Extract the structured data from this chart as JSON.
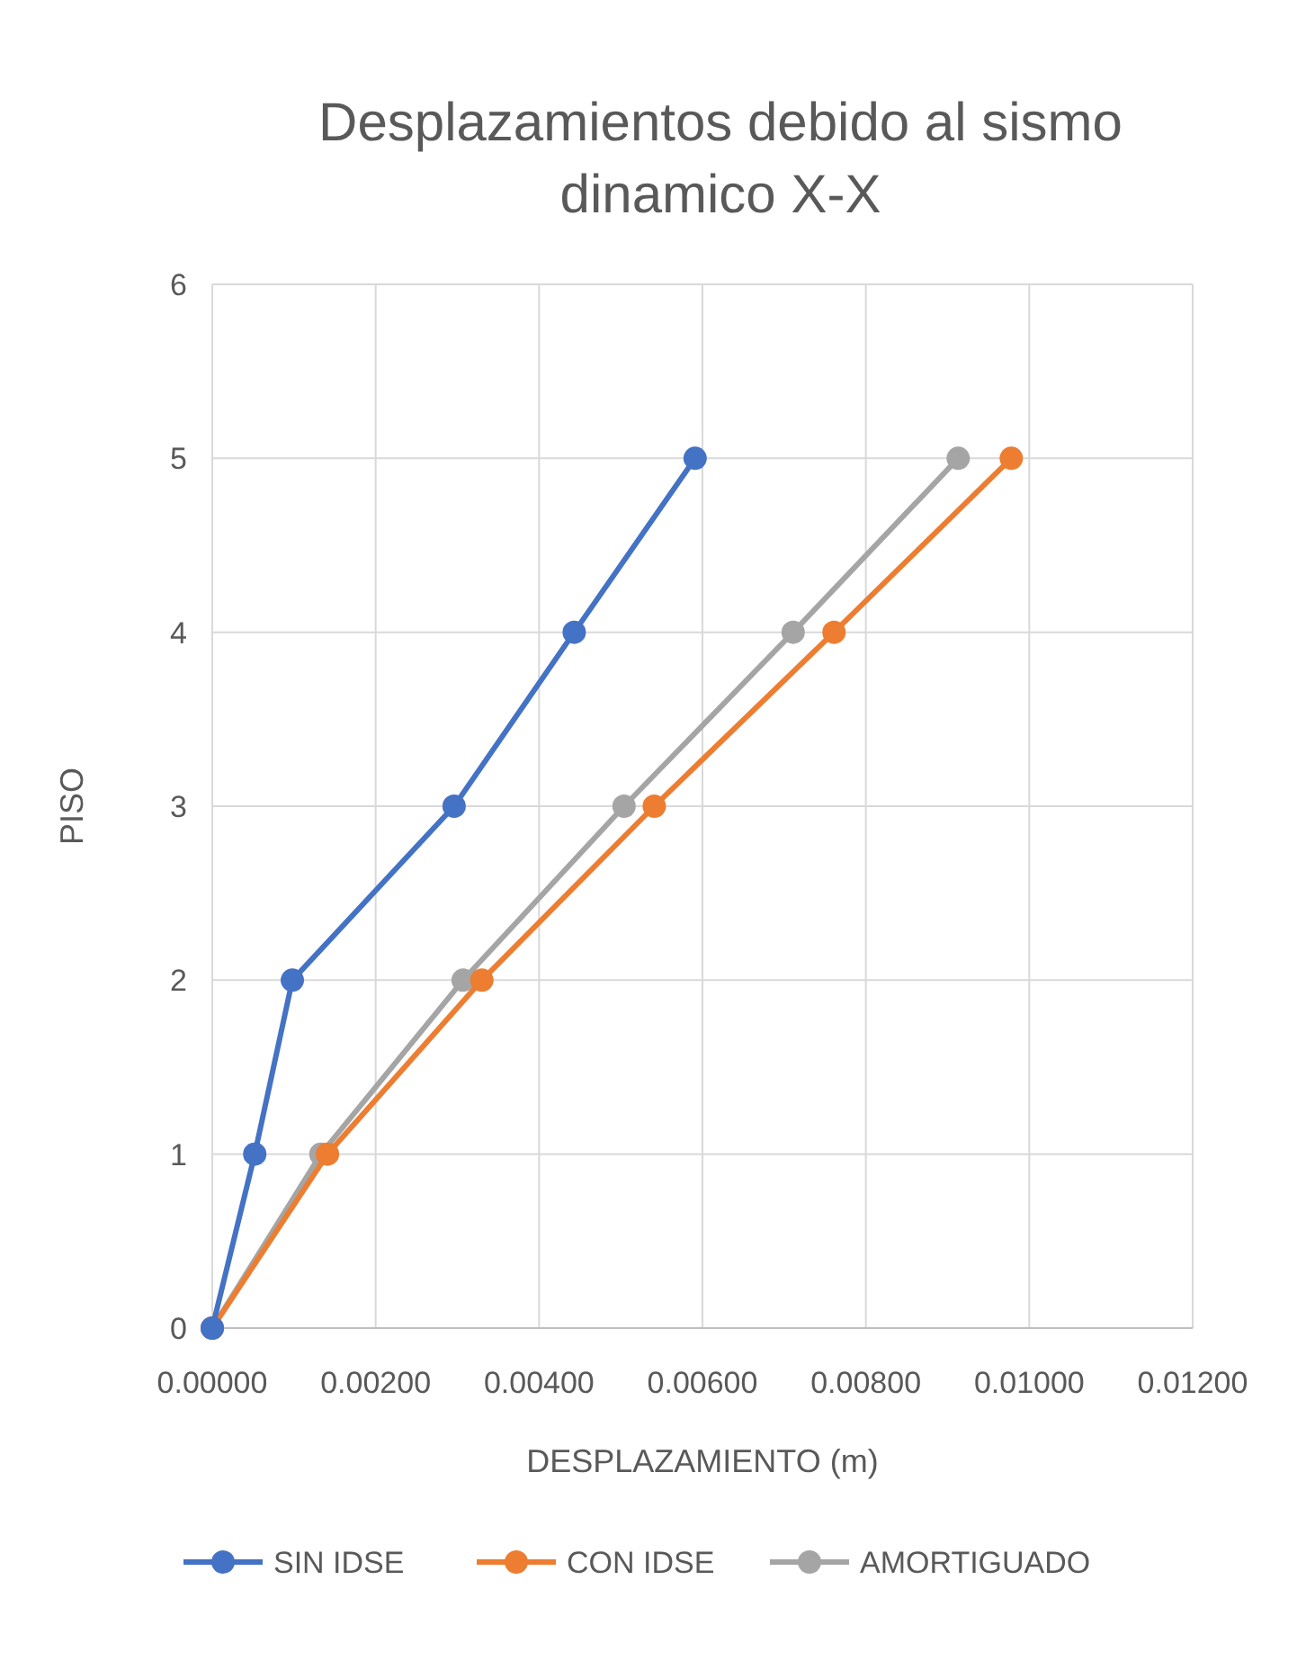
{
  "chart_data": {
    "type": "line",
    "title": "Desplazamientos debido al sismo dinamico X-X",
    "xlabel": "DESPLAZAMIENTO (m)",
    "ylabel": "PISO",
    "xlim": [
      0,
      0.012
    ],
    "xticks": [
      {
        "value": 0,
        "label": "0.00000"
      },
      {
        "value": 0.002,
        "label": "0.00200"
      },
      {
        "value": 0.004,
        "label": "0.00400"
      },
      {
        "value": 0.006,
        "label": "0.00600"
      },
      {
        "value": 0.008,
        "label": "0.00800"
      },
      {
        "value": 0.01,
        "label": "0.01000"
      },
      {
        "value": 0.012,
        "label": "0.01200"
      }
    ],
    "ylim": [
      0,
      6
    ],
    "yticks": [
      0,
      1,
      2,
      3,
      4,
      5,
      6
    ],
    "grid": true,
    "legend": "bottom",
    "marker": "circle",
    "line_style": "solid",
    "series": [
      {
        "name": "SIN IDSE",
        "color": "#4472c4",
        "x": [
          0,
          0.00052,
          0.00098,
          0.00296,
          0.00443,
          0.00591
        ],
        "values": [
          0,
          1,
          2,
          3,
          4,
          5
        ]
      },
      {
        "name": "CON IDSE",
        "color": "#ed7d31",
        "x": [
          0,
          0.00141,
          0.0033,
          0.00541,
          0.00761,
          0.00978
        ],
        "values": [
          0,
          1,
          2,
          3,
          4,
          5
        ]
      },
      {
        "name": "AMORTIGUADO",
        "color": "#a5a5a5",
        "x": [
          0,
          0.00133,
          0.00307,
          0.00504,
          0.00711,
          0.00913
        ],
        "values": [
          0,
          1,
          2,
          3,
          4,
          5
        ]
      }
    ]
  }
}
